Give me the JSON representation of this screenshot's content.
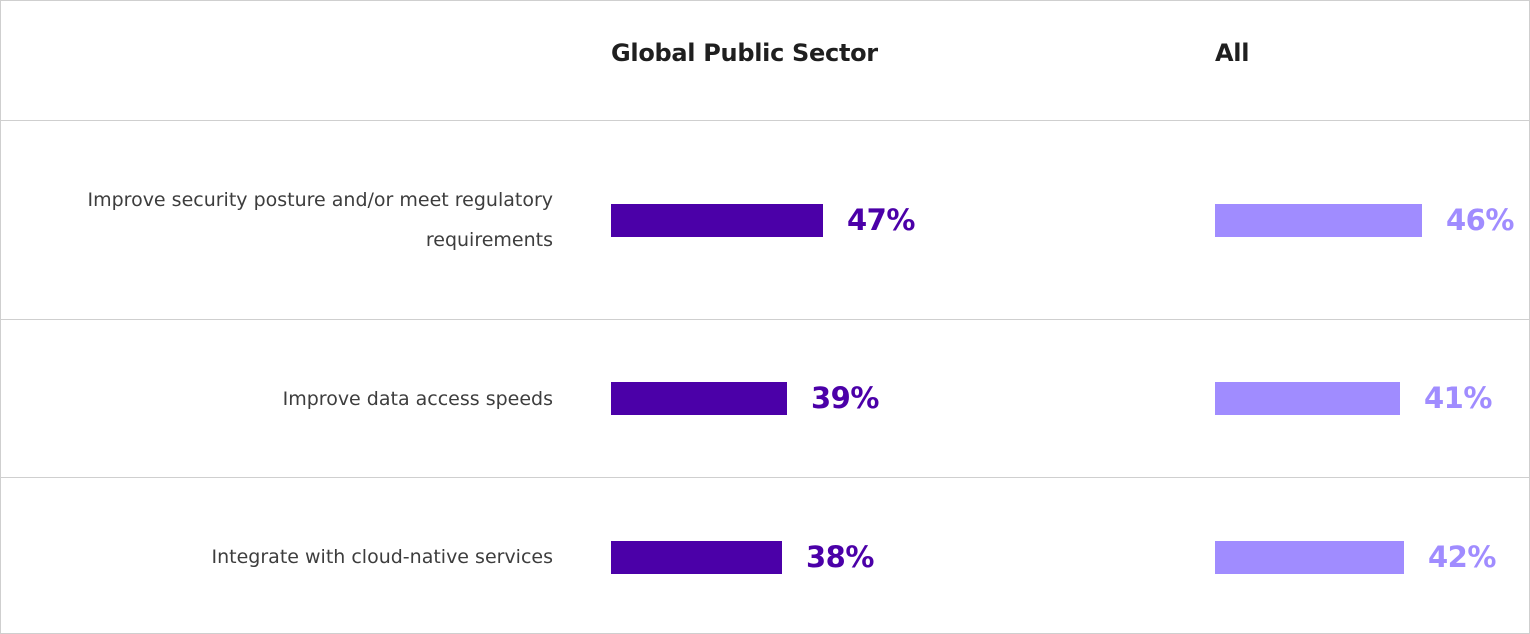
{
  "chart_data": {
    "type": "bar",
    "orientation": "horizontal",
    "categories": [
      "Improve security posture and/or meet regulatory requirements",
      "Improve data access speeds",
      "Integrate with cloud-native services"
    ],
    "series": [
      {
        "name": "Global Public Sector",
        "color": "#4b00a8",
        "values": [
          47,
          39,
          38
        ],
        "labels": [
          "47%",
          "39%",
          "38%"
        ]
      },
      {
        "name": "All",
        "color": "#a08cff",
        "values": [
          46,
          41,
          42
        ],
        "labels": [
          "46%",
          "41%",
          "42%"
        ]
      }
    ],
    "unit": "%",
    "grid": false,
    "legend": "column headers"
  }
}
